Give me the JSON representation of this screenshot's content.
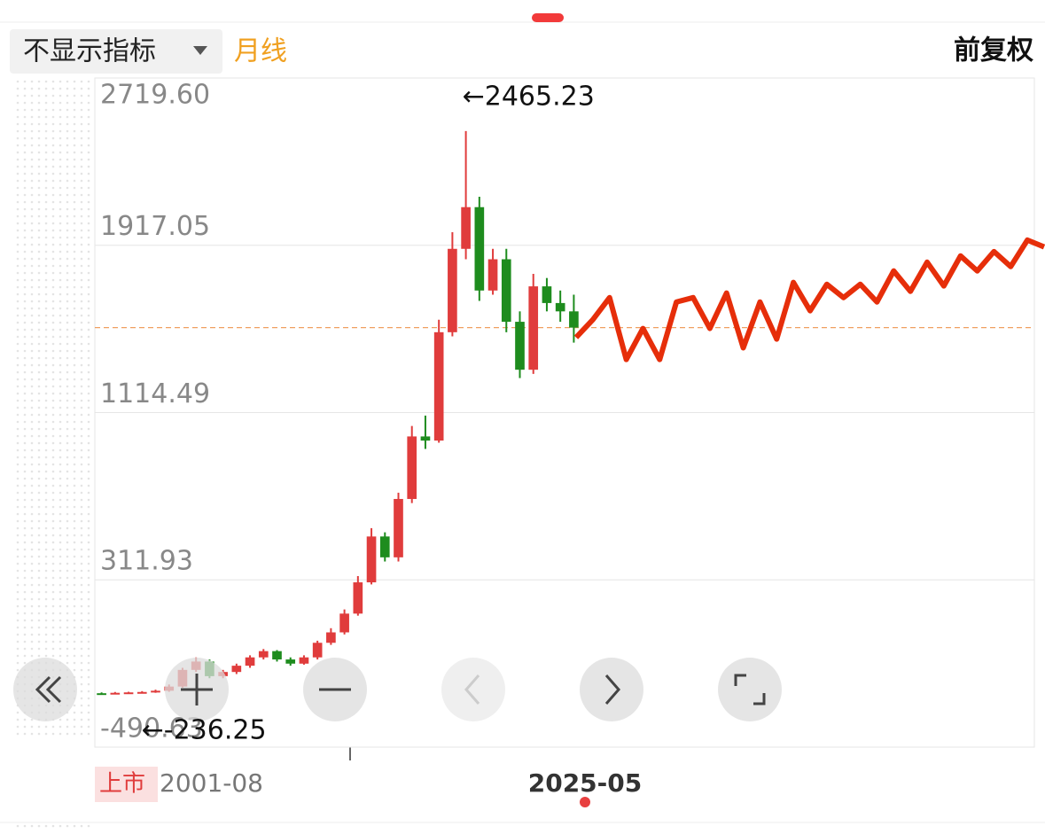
{
  "header": {
    "indicator": "不显示指标",
    "period": "月线",
    "adjust": "前复权"
  },
  "chart_data": {
    "type": "candlestick",
    "ylim": [
      -490.63,
      2719.6
    ],
    "yticks": [
      -490.63,
      311.93,
      1114.49,
      1917.05,
      {
        "value": 2719.6,
        "label": "2719.60"
      }
    ],
    "grid": true,
    "open": [
      -232,
      -235,
      -230,
      -228,
      -226,
      -220,
      -200,
      -120,
      -80,
      -150,
      -130,
      -100,
      -60,
      -30,
      -70,
      -90,
      -60,
      10,
      60,
      150,
      300,
      520,
      420,
      700,
      1000,
      980,
      1500,
      1900,
      2100,
      1700,
      1850,
      1550,
      1320,
      1720,
      1640,
      1600
    ],
    "high": [
      -228,
      -226,
      -225,
      -222,
      -215,
      -190,
      -110,
      -60,
      -70,
      -120,
      -90,
      -50,
      -20,
      -25,
      -60,
      -50,
      20,
      80,
      170,
      330,
      560,
      540,
      730,
      1050,
      1100,
      1560,
      1980,
      2465.23,
      2150,
      1900,
      1900,
      1600,
      1780,
      1760,
      1700,
      1680
    ],
    "low": [
      -236.25,
      -236,
      -234,
      -231,
      -230,
      -225,
      -205,
      -130,
      -160,
      -160,
      -140,
      -110,
      -70,
      -80,
      -100,
      -95,
      -70,
      0,
      50,
      140,
      290,
      400,
      400,
      680,
      940,
      970,
      1480,
      1850,
      1650,
      1680,
      1500,
      1280,
      1300,
      1600,
      1550,
      1450
    ],
    "close": [
      -235,
      -230,
      -228,
      -226,
      -220,
      -200,
      -120,
      -80,
      -150,
      -130,
      -100,
      -60,
      -30,
      -70,
      -90,
      -60,
      10,
      60,
      150,
      300,
      520,
      420,
      700,
      1000,
      980,
      1500,
      1900,
      2100,
      1700,
      1850,
      1550,
      1320,
      1720,
      1640,
      1600,
      1522
    ],
    "up_color": "#e03c3c",
    "down_color": "#1e8c1e",
    "current_price": 1522,
    "forecast": {
      "color": "#e62e0a",
      "values": [
        1475,
        1560,
        1666,
        1369,
        1518,
        1369,
        1645,
        1666,
        1518,
        1688,
        1425,
        1645,
        1467,
        1739,
        1603,
        1730,
        1666,
        1730,
        1645,
        1794,
        1696,
        1836,
        1722,
        1866,
        1794,
        1887,
        1815,
        1942,
        1909
      ]
    },
    "annotations": [
      {
        "label": "←2465.23",
        "value": 2465.23
      },
      {
        "label": "←-236.25",
        "value": -236.25
      }
    ],
    "x_labels": {
      "listing": "上市",
      "start": "2001-08",
      "end": "2025-05"
    }
  }
}
